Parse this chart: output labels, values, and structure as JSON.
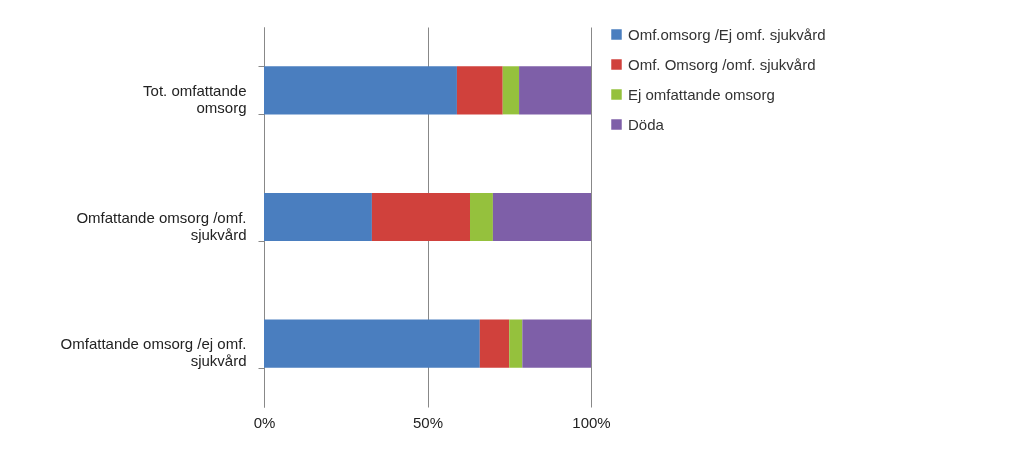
{
  "chart_data": {
    "type": "bar",
    "orientation": "horizontal",
    "stacked": true,
    "categories": [
      "Tot. omfattande omsorg",
      "Omfattande omsorg /omf. sjukvård",
      "Omfattande omsorg /ej omf. sjukvård"
    ],
    "series": [
      {
        "name": "Omf.omsorg /Ej omf. sjukvård",
        "color": "#4a7ebf",
        "values": [
          0.59,
          0.33,
          0.66
        ]
      },
      {
        "name": "Omf. Omsorg /omf. sjukvård",
        "color": "#d0413c",
        "values": [
          0.14,
          0.3,
          0.09
        ]
      },
      {
        "name": "Ej omfattande omsorg",
        "color": "#95c13d",
        "values": [
          0.05,
          0.07,
          0.04
        ]
      },
      {
        "name": "Döda",
        "color": "#7e5fa8",
        "values": [
          0.22,
          0.3,
          0.21
        ]
      }
    ],
    "xlim": [
      0,
      1
    ],
    "xticks": [
      {
        "value": 0,
        "label": "0%"
      },
      {
        "value": 0.5,
        "label": "50%"
      },
      {
        "value": 1,
        "label": "100%"
      }
    ],
    "grid": "x",
    "legend": "right"
  }
}
